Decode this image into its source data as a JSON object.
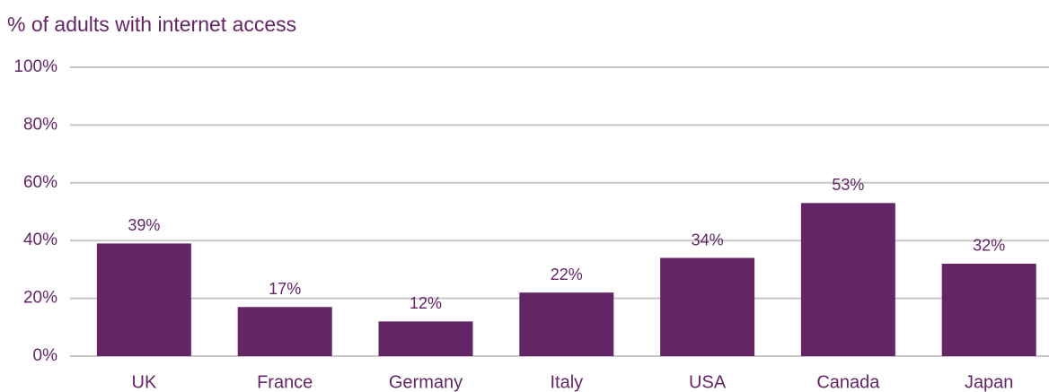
{
  "chart_data": {
    "type": "bar",
    "title": "% of adults with internet access",
    "categories": [
      "UK",
      "France",
      "Germany",
      "Italy",
      "USA",
      "Canada",
      "Japan"
    ],
    "values": [
      39,
      17,
      12,
      22,
      34,
      53,
      32
    ],
    "value_labels": [
      "39%",
      "17%",
      "12%",
      "22%",
      "34%",
      "53%",
      "32%"
    ],
    "color": "#642566",
    "ylim": [
      0,
      100
    ],
    "yticks": [
      {
        "value": 0,
        "label": "0%"
      },
      {
        "value": 20,
        "label": "20%"
      },
      {
        "value": 40,
        "label": "40%"
      },
      {
        "value": 60,
        "label": "60%"
      },
      {
        "value": 80,
        "label": "80%"
      },
      {
        "value": 100,
        "label": "100%"
      }
    ],
    "grid": true
  }
}
